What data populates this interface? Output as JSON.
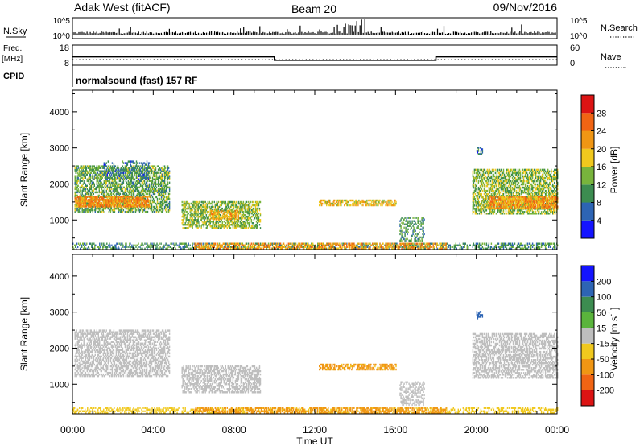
{
  "header": {
    "station": "Adak West (fitACF)",
    "beam": "Beam 20",
    "date": "09/Nov/2016"
  },
  "strips": {
    "nsky_label": "N.Sky",
    "nsky_ticks": [
      "10^5",
      "10^0"
    ],
    "nsearch_label": "N.Search",
    "nsearch_ticks": [
      "10^5",
      "10^0"
    ],
    "freq_label": "Freq.",
    "freq_unit": "[MHz]",
    "freq_ticks": [
      "18",
      "8"
    ],
    "nave_label": "Nave",
    "nave_ticks": [
      "60",
      "0"
    ],
    "cpid_label": "CPID",
    "cpid_text": "normalsound (fast) 157 RF",
    "freq_segments": [
      {
        "from": 0,
        "to": 10,
        "mhz": 12
      },
      {
        "from": 10,
        "to": 18,
        "mhz": 10
      },
      {
        "from": 18,
        "to": 24,
        "mhz": 12
      }
    ]
  },
  "chart_data": [
    {
      "type": "heatmap",
      "panel": "power",
      "ylabel": "Slant Range [km]",
      "xlabel": "Time UT",
      "xlim": [
        0,
        24
      ],
      "ylim": [
        180,
        4600
      ],
      "yticks": [
        "1000",
        "2000",
        "3000",
        "4000"
      ],
      "xticks": [
        "00:00",
        "04:00",
        "08:00",
        "12:00",
        "16:00",
        "20:00",
        "00:00"
      ],
      "colorbar_label": "Power [dB]",
      "colorbar_ticks": [
        "4",
        "8",
        "12",
        "16",
        "20",
        "24",
        "28"
      ],
      "colorbar_range": [
        0,
        32
      ],
      "regions": [
        {
          "t": [
            0.1,
            4.8
          ],
          "r": [
            1200,
            2500
          ],
          "v": 12,
          "d": 0.55
        },
        {
          "t": [
            0.1,
            3.8
          ],
          "r": [
            1350,
            1650
          ],
          "v": 23,
          "d": 0.75
        },
        {
          "t": [
            1.5,
            3.8
          ],
          "r": [
            2100,
            2600
          ],
          "v": 8,
          "d": 0.25
        },
        {
          "t": [
            5.4,
            9.3
          ],
          "r": [
            750,
            1500
          ],
          "v": 14,
          "d": 0.55
        },
        {
          "t": [
            6.8,
            8.2
          ],
          "r": [
            1000,
            1250
          ],
          "v": 20,
          "d": 0.5
        },
        {
          "t": [
            12.2,
            16.0
          ],
          "r": [
            1380,
            1520
          ],
          "v": 19,
          "d": 0.55
        },
        {
          "t": [
            16.2,
            17.4
          ],
          "r": [
            400,
            1050
          ],
          "v": 11,
          "d": 0.35
        },
        {
          "t": [
            19.8,
            24.0
          ],
          "r": [
            1150,
            2400
          ],
          "v": 14,
          "d": 0.55
        },
        {
          "t": [
            20.6,
            24.0
          ],
          "r": [
            1300,
            1650
          ],
          "v": 22,
          "d": 0.7
        },
        {
          "t": [
            20.0,
            20.3
          ],
          "r": [
            2800,
            3000
          ],
          "v": 8,
          "d": 0.5
        },
        {
          "t": [
            0.0,
            24.0
          ],
          "r": [
            180,
            320
          ],
          "v": 10,
          "d": 0.45
        },
        {
          "t": [
            6.0,
            18.5
          ],
          "r": [
            180,
            320
          ],
          "v": 22,
          "d": 0.5
        }
      ]
    },
    {
      "type": "heatmap",
      "panel": "velocity",
      "ylabel": "Slant Range [km]",
      "xlabel": "Time UT",
      "xlim": [
        0,
        24
      ],
      "ylim": [
        180,
        4600
      ],
      "yticks": [
        "1000",
        "2000",
        "3000",
        "4000"
      ],
      "xticks": [
        "00:00",
        "04:00",
        "08:00",
        "12:00",
        "16:00",
        "20:00",
        "00:00"
      ],
      "colorbar_label": "Velocity [m s^-1]",
      "colorbar_ticks": [
        "200",
        "100",
        "50",
        "15",
        "-15",
        "-50",
        "-100",
        "-200"
      ],
      "colorbar_range": [
        -250,
        250
      ],
      "regions": [
        {
          "t": [
            0.1,
            4.8
          ],
          "r": [
            1200,
            2500
          ],
          "v": 0,
          "d": 0.5
        },
        {
          "t": [
            5.4,
            9.3
          ],
          "r": [
            750,
            1500
          ],
          "v": 0,
          "d": 0.5
        },
        {
          "t": [
            12.2,
            16.0
          ],
          "r": [
            1380,
            1520
          ],
          "v": -60,
          "d": 0.55
        },
        {
          "t": [
            16.2,
            17.4
          ],
          "r": [
            400,
            1050
          ],
          "v": 0,
          "d": 0.35
        },
        {
          "t": [
            19.8,
            24.0
          ],
          "r": [
            1150,
            2400
          ],
          "v": 0,
          "d": 0.5
        },
        {
          "t": [
            20.0,
            20.3
          ],
          "r": [
            2800,
            3000
          ],
          "v": 150,
          "d": 0.5
        },
        {
          "t": [
            0.0,
            24.0
          ],
          "r": [
            180,
            320
          ],
          "v": -30,
          "d": 0.35
        },
        {
          "t": [
            6.0,
            18.5
          ],
          "r": [
            180,
            320
          ],
          "v": -70,
          "d": 0.45
        }
      ]
    }
  ],
  "colors": {
    "power": [
      "#1414ff",
      "#2d64b4",
      "#3c8c50",
      "#78b43c",
      "#f0c81e",
      "#f09614",
      "#f06414",
      "#dc1414"
    ],
    "velocity_pos": [
      "#5ab43c",
      "#3c8c50",
      "#2d64b4",
      "#1414ff"
    ],
    "velocity_neg": [
      "#f0c81e",
      "#f09614",
      "#f06414",
      "#dc1414"
    ],
    "ground": "#bebebe"
  }
}
